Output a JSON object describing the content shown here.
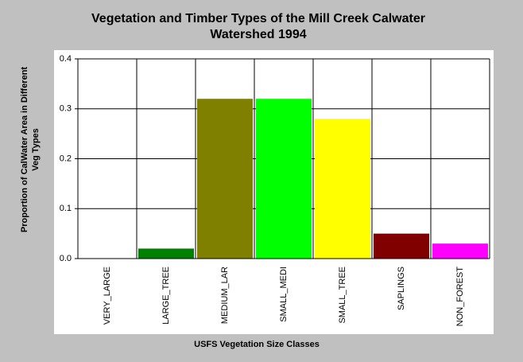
{
  "chart_data": {
    "type": "bar",
    "title": "Vegetation and Timber Types of the Mill Creek Calwater Watershed 1994",
    "x_label": "USFS Vegetation Size Classes",
    "y_label": "Proportion of CalWater Area in Different Veg Types",
    "categories": [
      "VERY_LARGE",
      "LARGE_TREE",
      "MEDIUM_LAR",
      "SMALL_MEDI",
      "SMALL_TREE",
      "SAPLINGS",
      "NON_FOREST"
    ],
    "values": [
      0,
      0.02,
      0.32,
      0.32,
      0.28,
      0.05,
      0.03
    ],
    "colors": [
      "#000080",
      "#008000",
      "#808000",
      "#00ff00",
      "#ffff00",
      "#800000",
      "#ff00ff"
    ],
    "ylim": [
      0,
      0.4
    ],
    "yticks": [
      {
        "value": 0,
        "label": "0.0"
      },
      0.1,
      0.2,
      0.3,
      0.4
    ],
    "grid": true
  }
}
